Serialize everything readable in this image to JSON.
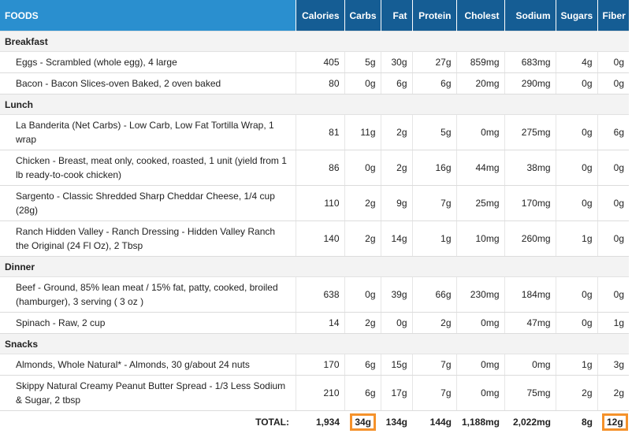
{
  "headers": {
    "foods": "FOODS",
    "calories": "Calories",
    "carbs": "Carbs",
    "fat": "Fat",
    "protein": "Protein",
    "cholest": "Cholest",
    "sodium": "Sodium",
    "sugars": "Sugars",
    "fiber": "Fiber"
  },
  "meals": [
    {
      "name": "Breakfast",
      "items": [
        {
          "food": "Eggs - Scrambled (whole egg), 4 large",
          "calories": "405",
          "carbs": "5g",
          "fat": "30g",
          "protein": "27g",
          "cholest": "859mg",
          "sodium": "683mg",
          "sugars": "4g",
          "fiber": "0g"
        },
        {
          "food": "Bacon - Bacon Slices-oven Baked, 2 oven baked",
          "calories": "80",
          "carbs": "0g",
          "fat": "6g",
          "protein": "6g",
          "cholest": "20mg",
          "sodium": "290mg",
          "sugars": "0g",
          "fiber": "0g"
        }
      ]
    },
    {
      "name": "Lunch",
      "items": [
        {
          "food": "La Banderita (Net Carbs) - Low Carb, Low Fat Tortilla Wrap, 1 wrap",
          "calories": "81",
          "carbs": "11g",
          "fat": "2g",
          "protein": "5g",
          "cholest": "0mg",
          "sodium": "275mg",
          "sugars": "0g",
          "fiber": "6g"
        },
        {
          "food": "Chicken - Breast, meat only, cooked, roasted, 1 unit (yield from 1 lb ready-to-cook chicken)",
          "calories": "86",
          "carbs": "0g",
          "fat": "2g",
          "protein": "16g",
          "cholest": "44mg",
          "sodium": "38mg",
          "sugars": "0g",
          "fiber": "0g"
        },
        {
          "food": "Sargento - Classic Shredded Sharp Cheddar Cheese, 1/4 cup (28g)",
          "calories": "110",
          "carbs": "2g",
          "fat": "9g",
          "protein": "7g",
          "cholest": "25mg",
          "sodium": "170mg",
          "sugars": "0g",
          "fiber": "0g"
        },
        {
          "food": "Ranch Hidden Valley - Ranch Dressing - Hidden Valley Ranch the Original (24 Fl Oz), 2 Tbsp",
          "calories": "140",
          "carbs": "2g",
          "fat": "14g",
          "protein": "1g",
          "cholest": "10mg",
          "sodium": "260mg",
          "sugars": "1g",
          "fiber": "0g"
        }
      ]
    },
    {
      "name": "Dinner",
      "items": [
        {
          "food": "Beef - Ground, 85% lean meat / 15% fat, patty, cooked, broiled (hamburger), 3 serving ( 3 oz )",
          "calories": "638",
          "carbs": "0g",
          "fat": "39g",
          "protein": "66g",
          "cholest": "230mg",
          "sodium": "184mg",
          "sugars": "0g",
          "fiber": "0g"
        },
        {
          "food": "Spinach - Raw, 2 cup",
          "calories": "14",
          "carbs": "2g",
          "fat": "0g",
          "protein": "2g",
          "cholest": "0mg",
          "sodium": "47mg",
          "sugars": "0g",
          "fiber": "1g"
        }
      ]
    },
    {
      "name": "Snacks",
      "items": [
        {
          "food": "Almonds, Whole Natural* - Almonds, 30 g/about 24 nuts",
          "calories": "170",
          "carbs": "6g",
          "fat": "15g",
          "protein": "7g",
          "cholest": "0mg",
          "sodium": "0mg",
          "sugars": "1g",
          "fiber": "3g"
        },
        {
          "food": "Skippy Natural Creamy Peanut Butter Spread - 1/3 Less Sodium & Sugar, 2 tbsp",
          "calories": "210",
          "carbs": "6g",
          "fat": "17g",
          "protein": "7g",
          "cholest": "0mg",
          "sodium": "75mg",
          "sugars": "2g",
          "fiber": "2g"
        }
      ]
    }
  ],
  "total": {
    "label": "TOTAL:",
    "calories": "1,934",
    "carbs": "34g",
    "fat": "134g",
    "protein": "144g",
    "cholest": "1,188mg",
    "sodium": "2,022mg",
    "sugars": "8g",
    "fiber": "12g"
  },
  "colors": {
    "header_foods": "#2a8fcf",
    "header_nutrients": "#155d94",
    "highlight": "#f5922b"
  }
}
